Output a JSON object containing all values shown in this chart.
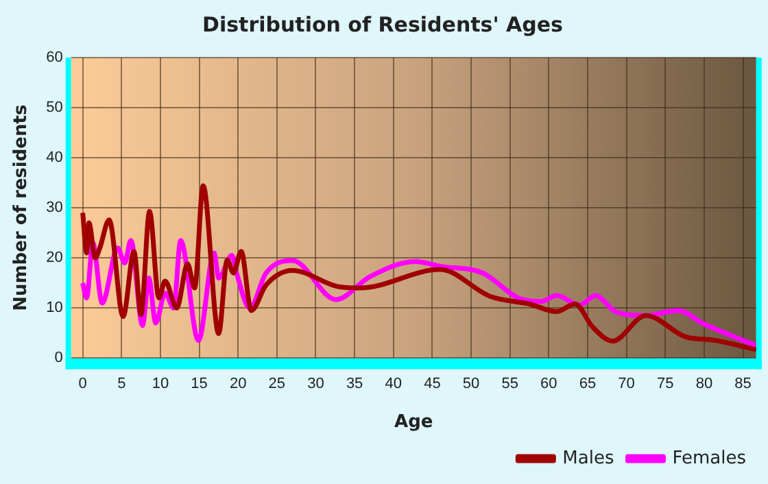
{
  "chart_data": {
    "type": "line",
    "title": "Distribution of Residents' Ages",
    "xlabel": "Age",
    "ylabel": "Number of residents",
    "xlim": [
      -1.5,
      86.7
    ],
    "xticks": [
      0,
      5,
      10,
      15,
      20,
      25,
      30,
      35,
      40,
      45,
      50,
      55,
      60,
      65,
      70,
      75,
      80,
      85
    ],
    "ylim": [
      0,
      60
    ],
    "yticks": [
      0,
      10,
      20,
      30,
      40,
      50,
      60
    ],
    "grid": true,
    "legend": "bottom right",
    "marker": "none",
    "line_style": "solid",
    "series": [
      {
        "name": "Males",
        "color": "#a00000",
        "x": [
          0,
          0.5,
          0.8,
          1.6,
          2.2,
          3.4,
          5.2,
          6.6,
          7.5,
          8.6,
          9.8,
          10.6,
          12.1,
          13.5,
          14.4,
          15.5,
          17.5,
          18.6,
          19.4,
          20.4,
          21.7,
          23.6,
          27,
          32.8,
          35.7,
          46,
          52.5,
          57.5,
          61,
          63.4,
          65.6,
          68.2,
          72.5,
          77.7,
          81.2,
          86.7
        ],
        "values": [
          29,
          21,
          27,
          20,
          22,
          27.6,
          8.3,
          21.3,
          8.7,
          29.3,
          12,
          15.4,
          10,
          18.8,
          14,
          34.4,
          4.9,
          19.6,
          17,
          21.3,
          9.5,
          14.6,
          17.5,
          14.3,
          14,
          17.7,
          12.3,
          10.8,
          9.3,
          10.8,
          6.3,
          3.4,
          8.5,
          4.2,
          3.6,
          1.7
        ]
      },
      {
        "name": "Females",
        "color": "#ff00ff",
        "x": [
          0,
          0.5,
          1.3,
          2.5,
          4.5,
          5.4,
          6.2,
          7.7,
          8.5,
          9.4,
          10.6,
          11.7,
          12.6,
          14.9,
          16.9,
          17.5,
          19.2,
          19.8,
          21.5,
          23.6,
          27,
          32.6,
          37,
          42.8,
          46.2,
          51.5,
          56.1,
          59,
          61,
          64,
          66,
          68.6,
          72.5,
          76.6,
          80,
          86.7
        ],
        "values": [
          15,
          12,
          23,
          11,
          22,
          19,
          23.5,
          6.5,
          16,
          7,
          13,
          10,
          23.5,
          3.5,
          21,
          16,
          20.5,
          17,
          10,
          17,
          19.5,
          11.7,
          16.3,
          19.3,
          18.3,
          17,
          12,
          11.3,
          12.5,
          10.6,
          12.5,
          9.3,
          8.5,
          9.5,
          6.8,
          2.5
        ]
      }
    ]
  }
}
